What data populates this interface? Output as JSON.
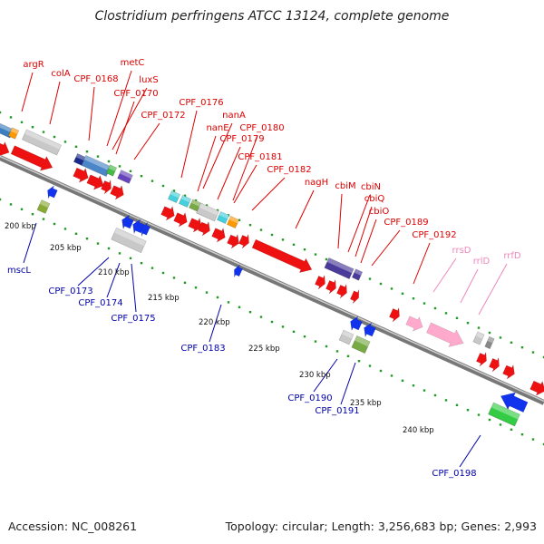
{
  "title": "Clostridium perfringens ATCC 13124, complete genome",
  "footer": {
    "accession": "Accession: NC_008261",
    "summary": "Topology: circular; Length: 3,256,683 bp; Genes: 2,993"
  },
  "colors": {
    "forward_label": "#dd0000",
    "reverse_label": "#0000aa",
    "rna_label": "#ee88bb",
    "backbone": "#888888",
    "scale_tick": "#228822"
  },
  "scale_labels": [
    "200 kbp",
    "205 kbp",
    "210 kbp",
    "215 kbp",
    "220 kbp",
    "225 kbp",
    "230 kbp",
    "235 kbp",
    "240 kbp"
  ],
  "forward_labels": [
    "argR",
    "colA",
    "CPF_0168",
    "metC",
    "luxS",
    "CPF_0170",
    "CPF_0172",
    "CPF_0176",
    "nanA",
    "nanE",
    "CPF_0180",
    "CPF_0179",
    "CPF_0181",
    "CPF_0182",
    "nagH",
    "cbiM",
    "cbiN",
    "cbiQ",
    "cbiO",
    "CPF_0189",
    "CPF_0192"
  ],
  "rna_labels": [
    "rrsD",
    "rrlD",
    "rrfD"
  ],
  "reverse_labels": [
    "mscL",
    "CPF_0173",
    "CPF_0174",
    "CPF_0175",
    "CPF_0183",
    "CPF_0190",
    "CPF_0191",
    "CPF_0198"
  ]
}
